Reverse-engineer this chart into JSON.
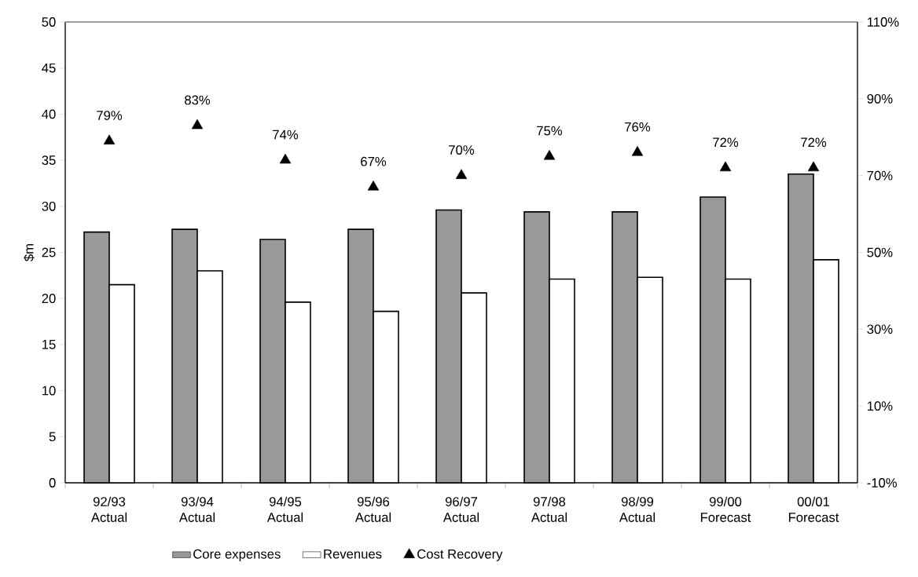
{
  "chart_data": {
    "type": "bar",
    "ylabel": "$m",
    "categories": [
      "92/93 Actual",
      "93/94 Actual",
      "94/95 Actual",
      "95/96 Actual",
      "96/97 Actual",
      "97/98 Actual",
      "98/99 Actual",
      "99/00 Forecast",
      "00/01 Forecast"
    ],
    "series": [
      {
        "name": "Core expenses",
        "color": "#999999",
        "values": [
          27.2,
          27.5,
          26.4,
          27.5,
          29.6,
          29.4,
          29.4,
          31.0,
          33.5
        ]
      },
      {
        "name": "Revenues",
        "color": "#ffffff",
        "values": [
          21.5,
          23.0,
          19.6,
          18.6,
          20.6,
          22.1,
          22.3,
          22.1,
          24.2
        ]
      },
      {
        "name": "Cost Recovery",
        "type": "scatter",
        "axis": "y2",
        "color": "#000000",
        "marker": "triangle",
        "values": [
          79,
          83,
          74,
          67,
          70,
          75,
          76,
          72,
          72
        ],
        "value_labels": [
          "79%",
          "83%",
          "74%",
          "67%",
          "70%",
          "75%",
          "76%",
          "72%",
          "72%"
        ]
      }
    ],
    "ylim": [
      0,
      50
    ],
    "yticks": [
      0,
      5,
      10,
      15,
      20,
      25,
      30,
      35,
      40,
      45,
      50
    ],
    "y2lim": [
      -10,
      110
    ],
    "y2ticks": [
      {
        "value": -10,
        "label": "-10%"
      },
      {
        "value": 10,
        "label": "10%"
      },
      {
        "value": 30,
        "label": "30%"
      },
      {
        "value": 50,
        "label": "50%"
      },
      {
        "value": 70,
        "label": "70%"
      },
      {
        "value": 90,
        "label": "90%"
      },
      {
        "value": 110,
        "label": "110%"
      }
    ],
    "legend": "bottom"
  }
}
